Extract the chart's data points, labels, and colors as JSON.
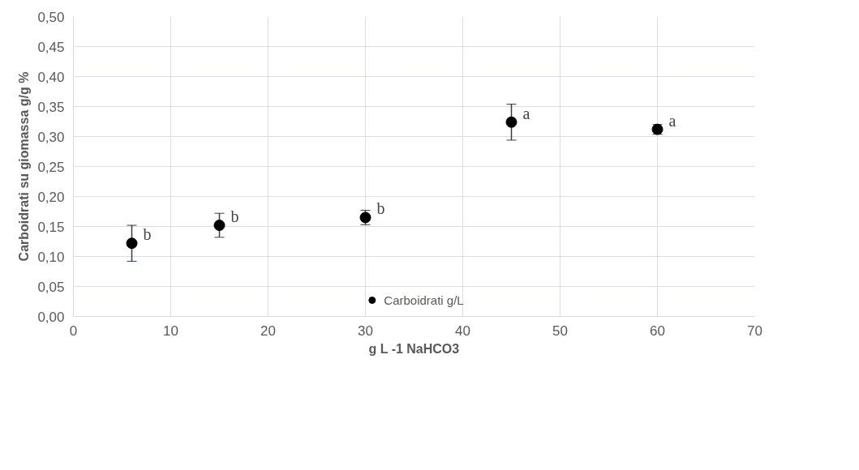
{
  "chart_data": {
    "type": "scatter",
    "xlabel": "g L -1 NaHCO3",
    "ylabel": "Carboidrati su giomassa g/g %",
    "x": [
      6,
      15,
      30,
      45,
      60
    ],
    "series": [
      {
        "name": "Carboidrati g/L",
        "color": "#000000",
        "values": [
          0.122,
          0.152,
          0.165,
          0.324,
          0.312
        ],
        "errors": [
          0.03,
          0.02,
          0.012,
          0.03,
          0.008
        ]
      }
    ],
    "annotations": [
      {
        "text": "b",
        "x": 6,
        "y": 0.122
      },
      {
        "text": "b",
        "x": 15,
        "y": 0.152
      },
      {
        "text": "b",
        "x": 30,
        "y": 0.165
      },
      {
        "text": "a",
        "x": 45,
        "y": 0.324
      },
      {
        "text": "a",
        "x": 60,
        "y": 0.312
      }
    ],
    "xlim": [
      0,
      70
    ],
    "xticks": [
      0,
      10,
      20,
      30,
      40,
      50,
      60,
      70
    ],
    "ylim": [
      0,
      0.5
    ],
    "yticks": [
      {
        "value": 0,
        "label": "0,00"
      },
      {
        "value": 0.05,
        "label": "0,05"
      },
      {
        "value": 0.1,
        "label": "0,10"
      },
      {
        "value": 0.15,
        "label": "0,15"
      },
      {
        "value": 0.2,
        "label": "0,20"
      },
      {
        "value": 0.25,
        "label": "0,25"
      },
      {
        "value": 0.3,
        "label": "0,30"
      },
      {
        "value": 0.35,
        "label": "0,35"
      },
      {
        "value": 0.4,
        "label": "0,40"
      },
      {
        "value": 0.45,
        "label": "0,45"
      },
      {
        "value": 0.5,
        "label": "0,50"
      }
    ],
    "grid": true,
    "legend": "bottom",
    "marker": "circle"
  }
}
